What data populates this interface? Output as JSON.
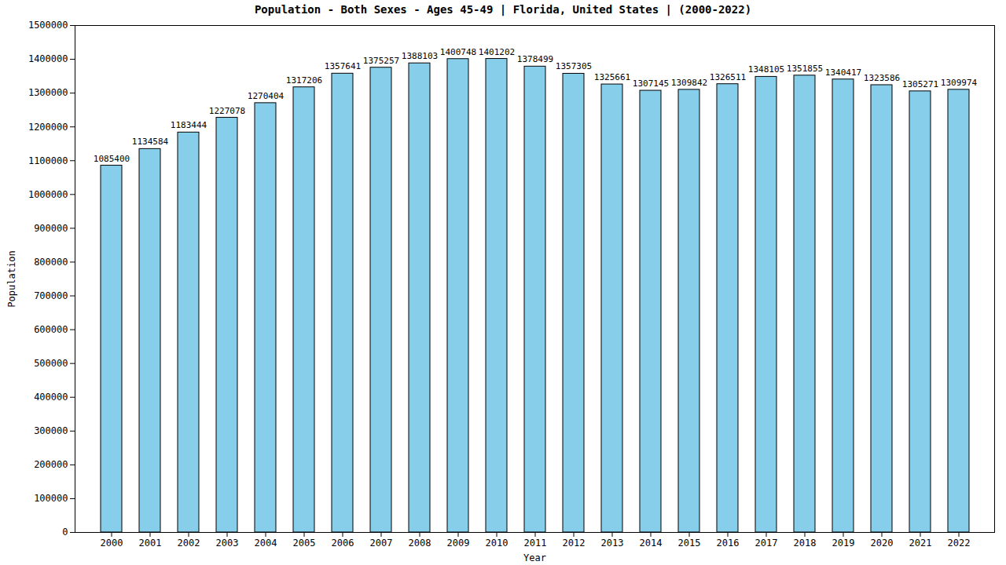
{
  "chart_data": {
    "type": "bar",
    "title": "Population - Both Sexes - Ages 45-49 | Florida, United States |  (2000-2022)",
    "x_label": "Year",
    "y_label": "Population",
    "categories": [
      "2000",
      "2001",
      "2002",
      "2003",
      "2004",
      "2005",
      "2006",
      "2007",
      "2008",
      "2009",
      "2010",
      "2011",
      "2012",
      "2013",
      "2014",
      "2015",
      "2016",
      "2017",
      "2018",
      "2019",
      "2020",
      "2021",
      "2022"
    ],
    "values": [
      1085400,
      1134584,
      1183444,
      1227078,
      1270404,
      1317206,
      1357641,
      1375257,
      1388103,
      1400748,
      1401202,
      1378499,
      1357305,
      1325661,
      1307145,
      1309842,
      1326511,
      1348105,
      1351855,
      1340417,
      1323586,
      1305271,
      1309974
    ],
    "color": "#87ceeb",
    "ylim": [
      0,
      1500000
    ],
    "yticks": [
      0,
      100000,
      200000,
      300000,
      400000,
      500000,
      600000,
      700000,
      800000,
      900000,
      1000000,
      1100000,
      1200000,
      1300000,
      1400000,
      1500000
    ],
    "grid": false,
    "data_labels": true
  }
}
